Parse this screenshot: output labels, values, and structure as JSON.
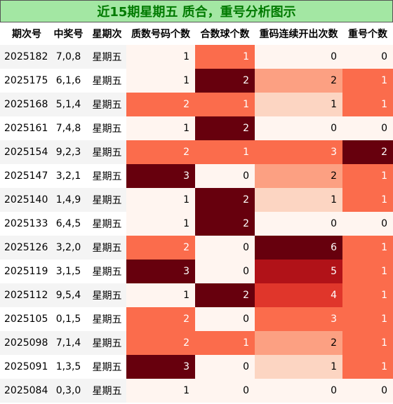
{
  "title": "近15期星期五 质合，重号分析图示",
  "headers": [
    "期次号",
    "中奖号",
    "星期次",
    "质数号码个数",
    "合数球个数",
    "重码连续开出次数",
    "重号个数"
  ],
  "chart_data": {
    "type": "table",
    "columns": [
      "期次号",
      "中奖号",
      "星期次",
      "质数号码个数",
      "合数球个数",
      "重码连续开出次数",
      "重号个数"
    ],
    "rows": [
      [
        "2025182",
        "7,0,8",
        "星期五",
        1,
        1,
        0,
        0
      ],
      [
        "2025175",
        "6,1,6",
        "星期五",
        1,
        2,
        2,
        1
      ],
      [
        "2025168",
        "5,1,4",
        "星期五",
        2,
        1,
        1,
        1
      ],
      [
        "2025161",
        "7,4,8",
        "星期五",
        1,
        2,
        0,
        0
      ],
      [
        "2025154",
        "9,2,3",
        "星期五",
        2,
        1,
        3,
        2
      ],
      [
        "2025147",
        "3,2,1",
        "星期五",
        3,
        0,
        2,
        1
      ],
      [
        "2025140",
        "1,4,9",
        "星期五",
        1,
        2,
        1,
        1
      ],
      [
        "2025133",
        "6,4,5",
        "星期五",
        1,
        2,
        0,
        0
      ],
      [
        "2025126",
        "3,2,0",
        "星期五",
        2,
        0,
        6,
        1
      ],
      [
        "2025119",
        "3,1,5",
        "星期五",
        3,
        0,
        5,
        1
      ],
      [
        "2025112",
        "9,5,4",
        "星期五",
        1,
        2,
        4,
        1
      ],
      [
        "2025105",
        "0,1,5",
        "星期五",
        2,
        0,
        3,
        1
      ],
      [
        "2025098",
        "7,1,4",
        "星期五",
        2,
        1,
        2,
        1
      ],
      [
        "2025091",
        "1,3,5",
        "星期五",
        3,
        0,
        1,
        1
      ],
      [
        "2025084",
        "0,3,0",
        "星期五",
        1,
        0,
        0,
        0
      ]
    ],
    "value_ranges": [
      [
        1,
        3
      ],
      [
        0,
        2
      ],
      [
        0,
        6
      ],
      [
        0,
        2
      ]
    ],
    "heat_colors": [
      "#fff5f0",
      "#fcd5c2",
      "#fca082",
      "#fb6c4c",
      "#e0362b",
      "#b11218",
      "#67000d"
    ]
  }
}
